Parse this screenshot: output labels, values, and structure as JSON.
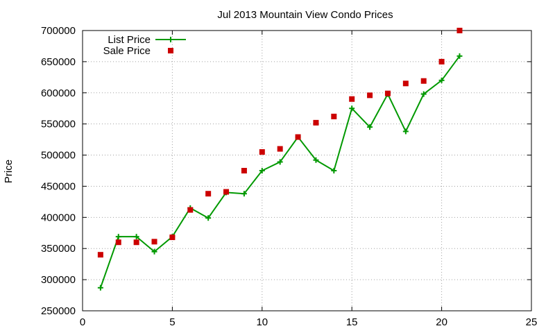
{
  "chart_data": {
    "type": "line",
    "title": "Jul 2013 Mountain View Condo Prices",
    "xlabel": "",
    "ylabel": "Price",
    "xlim": [
      0,
      25
    ],
    "ylim": [
      250000,
      700000
    ],
    "x_ticks": [
      0,
      5,
      10,
      15,
      20,
      25
    ],
    "y_ticks": [
      250000,
      300000,
      350000,
      400000,
      450000,
      500000,
      550000,
      600000,
      650000,
      700000
    ],
    "grid": true,
    "legend_position": "top-left",
    "series": [
      {
        "name": "List Price",
        "style": "line-with-plus-markers",
        "color": "#009900",
        "x": [
          1,
          2,
          3,
          4,
          5,
          6,
          7,
          8,
          9,
          10,
          11,
          12,
          13,
          14,
          15,
          16,
          17,
          18,
          19,
          20,
          21
        ],
        "values": [
          287000,
          369000,
          369000,
          345000,
          369000,
          415000,
          399000,
          440000,
          438000,
          475000,
          489000,
          529000,
          492000,
          475000,
          575000,
          545000,
          598000,
          538000,
          598000,
          620000,
          659000
        ]
      },
      {
        "name": "Sale Price",
        "style": "square-markers",
        "color": "#cc0000",
        "x": [
          1,
          2,
          3,
          4,
          5,
          6,
          7,
          8,
          9,
          10,
          11,
          12,
          13,
          14,
          15,
          16,
          17,
          18,
          19,
          20,
          21
        ],
        "values": [
          340000,
          360000,
          360000,
          361000,
          368000,
          412000,
          438000,
          441000,
          475000,
          505000,
          510000,
          529000,
          552000,
          562000,
          590000,
          596000,
          599000,
          615000,
          619000,
          650000,
          700000
        ]
      }
    ]
  }
}
